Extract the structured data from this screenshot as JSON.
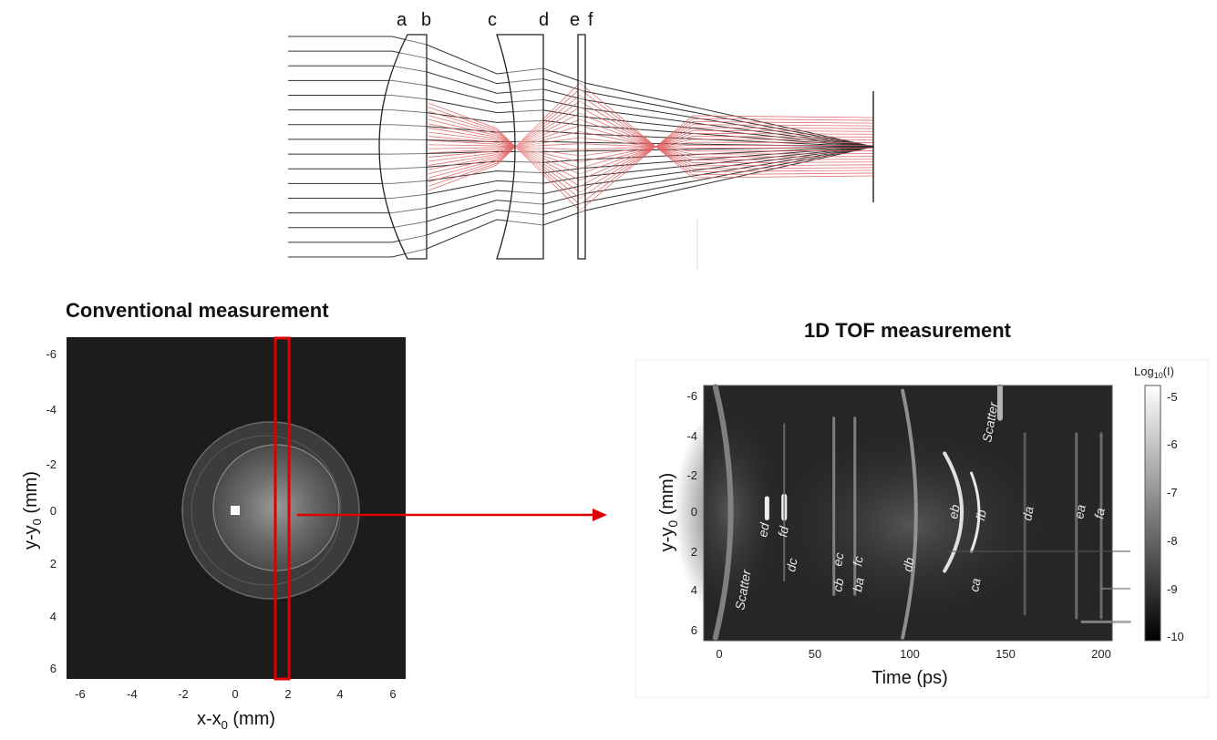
{
  "lens_diagram": {
    "element_labels": [
      "a",
      "b",
      "c",
      "d",
      "e",
      "f"
    ]
  },
  "conventional": {
    "heading": "Conventional measurement",
    "ylabel_base": "y-y",
    "ylabel_sub": "0",
    "ylabel_unit": " (mm)",
    "xlabel_base": "x-x",
    "xlabel_sub": "0",
    "xlabel_unit": " (mm)",
    "yticks": [
      "-6",
      "-4",
      "-2",
      "0",
      "2",
      "4",
      "6"
    ],
    "xticks": [
      "-6",
      "-4",
      "-2",
      "0",
      "2",
      "4",
      "6"
    ],
    "highlight_color": "#e00000"
  },
  "tof": {
    "heading": "1D TOF measurement",
    "ylabel_base": "y-y",
    "ylabel_sub": "0",
    "ylabel_unit": " (mm)",
    "xlabel": "Time (ps)",
    "yticks": [
      "-6",
      "-4",
      "-2",
      "0",
      "2",
      "4",
      "6"
    ],
    "xticks": [
      "0",
      "50",
      "100",
      "150",
      "200"
    ],
    "colorbar_title_base": "Log",
    "colorbar_title_sub": "10",
    "colorbar_title_end": "(I)",
    "colorbar_ticks": [
      "-5",
      "-6",
      "-7",
      "-8",
      "-9",
      "-10"
    ],
    "annotations": [
      "Scatter",
      "ed",
      "fd",
      "dc",
      "cb",
      "ec",
      "ba",
      "fc",
      "db",
      "eb",
      "ca",
      "fb",
      "Scatter",
      "da",
      "ea",
      "fa"
    ]
  },
  "arrow_color": "#e00000"
}
